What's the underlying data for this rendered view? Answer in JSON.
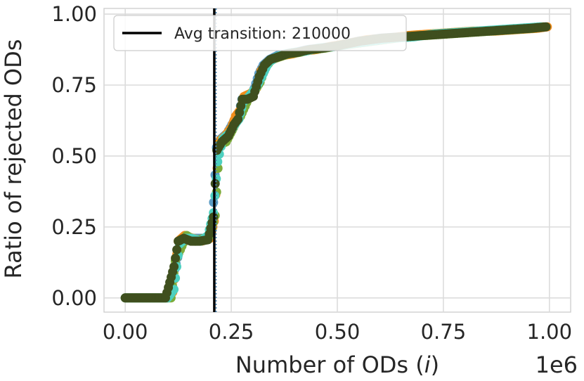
{
  "chart_data": {
    "type": "scatter",
    "xlabel": "Number of ODs (i)",
    "xlabel_main": "Number of ODs (",
    "xlabel_italic": "i",
    "xlabel_close": ")",
    "x_offset_text": "1e6",
    "ylabel": "Ratio of rejected ODs",
    "xlim": [
      -50000,
      1050000
    ],
    "ylim": [
      -0.05,
      1.02
    ],
    "x_ticks": [
      0,
      250000,
      500000,
      750000,
      1000000
    ],
    "x_tick_labels": [
      "0.00",
      "0.25",
      "0.50",
      "0.75",
      "1.00"
    ],
    "y_ticks": [
      0,
      0.25,
      0.5,
      0.75,
      1.0
    ],
    "y_tick_labels": [
      "0.00",
      "0.25",
      "0.50",
      "0.75",
      "1.00"
    ],
    "grid": true,
    "legend_position": "top-left",
    "legend": [
      {
        "label": "Avg transition: 210000",
        "style": "solid-black-line"
      }
    ],
    "vertical_lines": [
      {
        "x": 210000,
        "style": "solid",
        "color": "#000000"
      },
      {
        "x": 214000,
        "style": "dotted",
        "color": "#4a7fa8"
      }
    ],
    "series_colors": [
      "#5b9bc4",
      "#f28e1c",
      "#7cab3a",
      "#4dd0c0",
      "#3f4f1e"
    ],
    "series": [
      {
        "x": [
          0,
          20000,
          40000,
          60000,
          80000,
          100000,
          120000,
          135000,
          150000,
          170000,
          190000,
          205000,
          215000,
          225000,
          240000,
          255000,
          265000,
          275000,
          285000,
          300000,
          315000,
          325000,
          340000,
          360000,
          380000,
          400000,
          430000,
          460000,
          500000,
          550000,
          600000,
          650000,
          700000,
          750000,
          800000,
          850000,
          900000,
          950000,
          990000
        ],
        "y": [
          0,
          0,
          0,
          0,
          0,
          0,
          0.12,
          0.21,
          0.21,
          0.21,
          0.21,
          0.24,
          0.53,
          0.56,
          0.58,
          0.62,
          0.63,
          0.7,
          0.71,
          0.72,
          0.79,
          0.82,
          0.84,
          0.855,
          0.86,
          0.865,
          0.875,
          0.88,
          0.89,
          0.905,
          0.915,
          0.92,
          0.925,
          0.93,
          0.935,
          0.94,
          0.945,
          0.95,
          0.955
        ]
      },
      {
        "x": [
          0,
          25000,
          50000,
          75000,
          100000,
          112000,
          125000,
          140000,
          160000,
          180000,
          200000,
          210000,
          220000,
          235000,
          250000,
          260000,
          270000,
          280000,
          295000,
          310000,
          320000,
          335000,
          355000,
          375000,
          395000,
          420000,
          450000,
          480000,
          520000,
          570000,
          620000,
          670000,
          720000,
          770000,
          820000,
          870000,
          920000,
          970000,
          995000
        ],
        "y": [
          0,
          0,
          0,
          0,
          0,
          0.02,
          0.2,
          0.22,
          0.21,
          0.2,
          0.21,
          0.27,
          0.55,
          0.57,
          0.6,
          0.64,
          0.66,
          0.71,
          0.72,
          0.74,
          0.8,
          0.83,
          0.845,
          0.855,
          0.86,
          0.87,
          0.875,
          0.885,
          0.895,
          0.91,
          0.915,
          0.925,
          0.93,
          0.935,
          0.94,
          0.94,
          0.945,
          0.95,
          0.955
        ]
      },
      {
        "x": [
          0,
          30000,
          60000,
          90000,
          108000,
          118000,
          130000,
          145000,
          165000,
          185000,
          200000,
          212000,
          222000,
          238000,
          252000,
          262000,
          272000,
          290000,
          305000,
          318000,
          330000,
          345000,
          365000,
          385000,
          410000,
          440000,
          470000,
          510000,
          560000,
          610000,
          660000,
          710000,
          760000,
          810000,
          860000,
          910000,
          960000,
          985000
        ],
        "y": [
          0,
          0,
          0,
          0,
          0,
          0.13,
          0.17,
          0.22,
          0.2,
          0.21,
          0.22,
          0.29,
          0.54,
          0.55,
          0.59,
          0.62,
          0.64,
          0.7,
          0.73,
          0.76,
          0.81,
          0.84,
          0.85,
          0.86,
          0.865,
          0.875,
          0.88,
          0.89,
          0.9,
          0.91,
          0.92,
          0.925,
          0.93,
          0.935,
          0.94,
          0.945,
          0.95,
          0.955
        ]
      },
      {
        "x": [
          0,
          35000,
          70000,
          100000,
          115000,
          128000,
          142000,
          158000,
          178000,
          195000,
          208000,
          218000,
          230000,
          245000,
          258000,
          268000,
          278000,
          292000,
          308000,
          322000,
          338000,
          358000,
          378000,
          398000,
          425000,
          455000,
          490000,
          530000,
          580000,
          630000,
          680000,
          730000,
          780000,
          830000,
          880000,
          930000,
          980000
        ],
        "y": [
          0,
          0,
          0,
          0,
          0.03,
          0.19,
          0.21,
          0.21,
          0.2,
          0.22,
          0.3,
          0.48,
          0.56,
          0.58,
          0.61,
          0.63,
          0.69,
          0.71,
          0.74,
          0.78,
          0.83,
          0.85,
          0.86,
          0.865,
          0.87,
          0.88,
          0.885,
          0.895,
          0.905,
          0.915,
          0.92,
          0.93,
          0.935,
          0.94,
          0.945,
          0.95,
          0.955
        ]
      },
      {
        "x": [
          0,
          15000,
          35000,
          55000,
          75000,
          95000,
          115000,
          125000,
          138000,
          155000,
          175000,
          195000,
          208000,
          216000,
          228000,
          243000,
          256000,
          266000,
          276000,
          288000,
          302000,
          316000,
          328000,
          342000,
          362000,
          382000,
          405000,
          435000,
          465000,
          505000,
          555000,
          605000,
          655000,
          705000,
          755000,
          805000,
          855000,
          905000,
          955000,
          992000
        ],
        "y": [
          0,
          0,
          0,
          0,
          0,
          0,
          0.11,
          0.2,
          0.21,
          0.2,
          0.2,
          0.205,
          0.285,
          0.52,
          0.55,
          0.57,
          0.61,
          0.63,
          0.7,
          0.7,
          0.71,
          0.78,
          0.82,
          0.84,
          0.85,
          0.86,
          0.865,
          0.875,
          0.88,
          0.89,
          0.905,
          0.915,
          0.92,
          0.925,
          0.93,
          0.935,
          0.94,
          0.945,
          0.95,
          0.955
        ]
      }
    ]
  }
}
